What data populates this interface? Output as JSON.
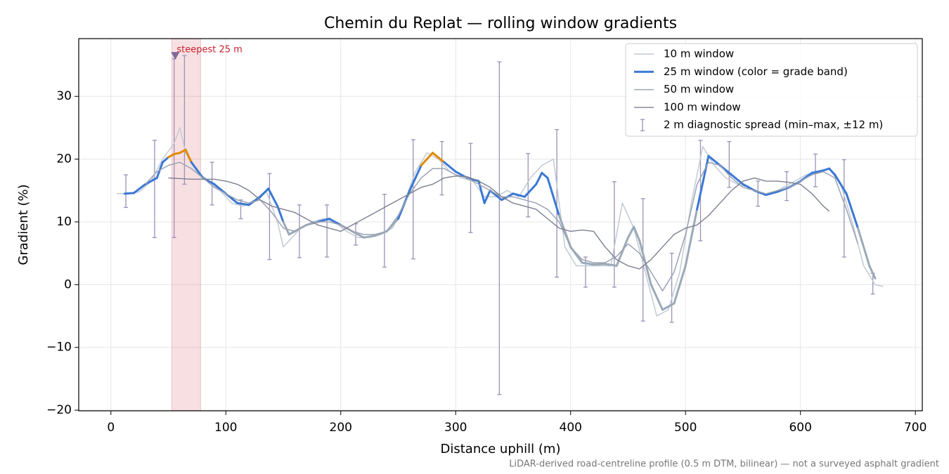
{
  "chart_data": {
    "type": "line",
    "title": "Chemin du Replat — rolling window gradients",
    "x_label": "Distance uphill (m)",
    "y_label": "Gradient (%)",
    "footnote": "LiDAR-derived road-centreline profile (0.5 m DTM, bilinear) — not a surveyed asphalt gradient",
    "xlim": [
      -28,
      706
    ],
    "ylim": [
      -20.1,
      39.2
    ],
    "xticks": [
      0,
      100,
      200,
      300,
      400,
      500,
      600,
      700
    ],
    "yticks": [
      {
        "value": -20,
        "label": "−20"
      },
      {
        "value": -10,
        "label": "−10"
      },
      0,
      10,
      20,
      30
    ],
    "grid": true,
    "legend": "upper right",
    "grade_bands": [
      {
        "min": -20.1,
        "max": 10,
        "color": "#9aaab8"
      },
      {
        "min": 10,
        "max": 20,
        "color": "#3a78d4"
      },
      {
        "min": 20,
        "max": 39.2,
        "color": "#e08a00"
      }
    ],
    "series": [
      {
        "name": "10 m window",
        "color": "#c3cad4",
        "x": [
          5,
          15,
          25,
          35,
          45,
          55,
          60,
          65,
          75,
          85,
          95,
          105,
          115,
          125,
          135,
          145,
          150,
          155,
          165,
          175,
          185,
          195,
          205,
          215,
          225,
          235,
          245,
          255,
          265,
          275,
          285,
          295,
          305,
          315,
          325,
          335,
          345,
          355,
          365,
          375,
          385,
          395,
          405,
          415,
          425,
          435,
          445,
          455,
          465,
          475,
          485,
          495,
          505,
          515,
          525,
          535,
          545,
          555,
          565,
          575,
          585,
          595,
          605,
          615,
          625,
          635,
          645,
          655,
          665,
          672
        ],
        "values": [
          14.5,
          14.5,
          14.8,
          16.5,
          20,
          22.5,
          25,
          21,
          18,
          16.5,
          15,
          13,
          12.5,
          13.5,
          15,
          10,
          6,
          7,
          9,
          10,
          10.5,
          10,
          8.5,
          7.5,
          7.5,
          8,
          9,
          13,
          18,
          21,
          20,
          18,
          17,
          16.5,
          14,
          14,
          15,
          14,
          17,
          19,
          20,
          6,
          3,
          3,
          3,
          3,
          13,
          9,
          2,
          -5,
          -4,
          2,
          13,
          22,
          19,
          17,
          16,
          15.5,
          14.5,
          14.5,
          15.5,
          16.5,
          17.5,
          18,
          18.5,
          16,
          10,
          3,
          0,
          -0.3
        ]
      },
      {
        "name": "25 m window (color = grade band)",
        "color": "#3a78d4",
        "banded": true,
        "x": [
          12,
          20,
          30,
          40,
          45,
          50,
          55,
          60,
          65,
          70,
          80,
          90,
          100,
          110,
          120,
          130,
          137,
          145,
          150,
          155,
          160,
          170,
          180,
          190,
          200,
          210,
          220,
          230,
          240,
          250,
          260,
          270,
          280,
          290,
          300,
          310,
          320,
          325,
          330,
          340,
          350,
          360,
          370,
          375,
          380,
          390,
          400,
          410,
          420,
          430,
          440,
          450,
          455,
          460,
          470,
          480,
          490,
          500,
          510,
          520,
          530,
          540,
          550,
          560,
          570,
          580,
          590,
          600,
          610,
          620,
          625,
          630,
          640,
          650,
          660,
          665
        ],
        "values": [
          14.5,
          14.6,
          16,
          17,
          19.5,
          20.3,
          20.8,
          21,
          21.5,
          19.5,
          17,
          16,
          14.5,
          13,
          12.7,
          14,
          15.3,
          12.5,
          10,
          8,
          8.5,
          9.5,
          10,
          10.5,
          9.5,
          8.5,
          7.5,
          7.8,
          8.5,
          10.5,
          15,
          19,
          21,
          19.5,
          18,
          17,
          16.5,
          13,
          15,
          13.5,
          14.5,
          14,
          16,
          17.8,
          17,
          11,
          6,
          3.5,
          3.2,
          3.3,
          3,
          7.5,
          9.2,
          7,
          0,
          -4,
          -3,
          3,
          12,
          20.5,
          19,
          17.5,
          16,
          15,
          14.3,
          14.8,
          15.5,
          16.5,
          17.8,
          18.2,
          18.5,
          17.5,
          14.5,
          9,
          3,
          1
        ]
      },
      {
        "name": "50 m window",
        "color": "#9ca3b3",
        "x": [
          30,
          40,
          50,
          60,
          70,
          80,
          90,
          100,
          110,
          120,
          130,
          140,
          150,
          160,
          170,
          180,
          190,
          200,
          210,
          220,
          230,
          240,
          250,
          260,
          270,
          280,
          290,
          300,
          310,
          320,
          330,
          340,
          350,
          360,
          370,
          380,
          390,
          400,
          410,
          420,
          430,
          440,
          450,
          460,
          470,
          480,
          490,
          500,
          510,
          520,
          530,
          540,
          550,
          560,
          570,
          580,
          590,
          600,
          610,
          620,
          630,
          640,
          650
        ],
        "values": [
          16,
          18,
          19,
          19.5,
          18.5,
          17,
          15.5,
          14.5,
          13.5,
          13,
          13.5,
          11.5,
          9,
          8.5,
          9.5,
          10,
          10,
          9.5,
          8.5,
          8,
          8,
          8.5,
          11,
          14.5,
          17,
          18.5,
          18.5,
          17.5,
          17,
          16,
          15,
          14,
          14,
          13.5,
          13,
          12,
          10,
          6,
          4,
          3.5,
          3.5,
          4.5,
          6.5,
          5,
          2,
          -1,
          2,
          8,
          16,
          19.5,
          19,
          17,
          15.5,
          15,
          14.5,
          15,
          15.5,
          16.5,
          17.5,
          18,
          17,
          12,
          6.5
        ]
      },
      {
        "name": "100 m window",
        "color": "#7c8090",
        "x": [
          50,
          70,
          90,
          100,
          110,
          120,
          130,
          140,
          150,
          160,
          170,
          180,
          190,
          200,
          210,
          220,
          230,
          240,
          250,
          260,
          270,
          280,
          290,
          300,
          310,
          320,
          330,
          340,
          350,
          360,
          370,
          380,
          390,
          400,
          410,
          420,
          430,
          440,
          450,
          460,
          470,
          480,
          490,
          500,
          510,
          520,
          530,
          540,
          550,
          560,
          570,
          580,
          590,
          600,
          610,
          620,
          625
        ],
        "values": [
          17,
          16.8,
          16.8,
          16.5,
          16,
          15,
          13.5,
          12.5,
          12,
          11.5,
          10.5,
          9.5,
          9,
          8.5,
          9.5,
          10.5,
          11.5,
          12.5,
          13.5,
          14.5,
          15.5,
          16,
          17,
          17.3,
          17.2,
          16.5,
          15.5,
          14,
          13,
          12.5,
          12,
          10.5,
          9,
          8.5,
          8.7,
          8.5,
          6,
          4,
          3,
          2.5,
          4,
          6,
          8,
          9,
          9.5,
          11,
          13,
          15,
          16.5,
          17,
          16.5,
          16.5,
          16.3,
          16,
          14.5,
          12.5,
          11.7
        ]
      }
    ],
    "errorbars": {
      "name": "2 m diagnostic spread (min–max, ±12 m)",
      "color": "#9b91b8",
      "x": [
        13,
        38,
        55,
        64,
        88,
        113,
        138,
        164,
        188,
        213,
        238,
        263,
        288,
        313,
        338,
        363,
        388,
        413,
        438,
        463,
        488,
        513,
        538,
        563,
        588,
        613,
        638,
        663
      ],
      "low": [
        12.3,
        7.5,
        7.5,
        16,
        12.7,
        10.5,
        4,
        4.3,
        4.4,
        6.3,
        2.8,
        4.1,
        14.3,
        8.3,
        -17.5,
        10.8,
        1.2,
        -0.4,
        -0.4,
        -5.8,
        -6,
        7,
        15.5,
        12.5,
        13.4,
        15.6,
        4.4,
        -1.5
      ],
      "high": [
        17.5,
        23,
        36,
        36.5,
        19.5,
        13.5,
        17.7,
        12.7,
        12.7,
        9.7,
        14.4,
        23.1,
        22.8,
        22.5,
        35.5,
        20.9,
        24.7,
        4.4,
        16.4,
        13.7,
        5,
        23,
        22.8,
        16.5,
        18,
        20.8,
        19.9,
        1.8
      ]
    },
    "highlight": {
      "label": "steepest 25 m",
      "x0": 53,
      "x1": 78,
      "color": "#d9545f",
      "marker_x": 56,
      "marker_y": 36.5,
      "marker_color": "#7d6a9a"
    }
  }
}
